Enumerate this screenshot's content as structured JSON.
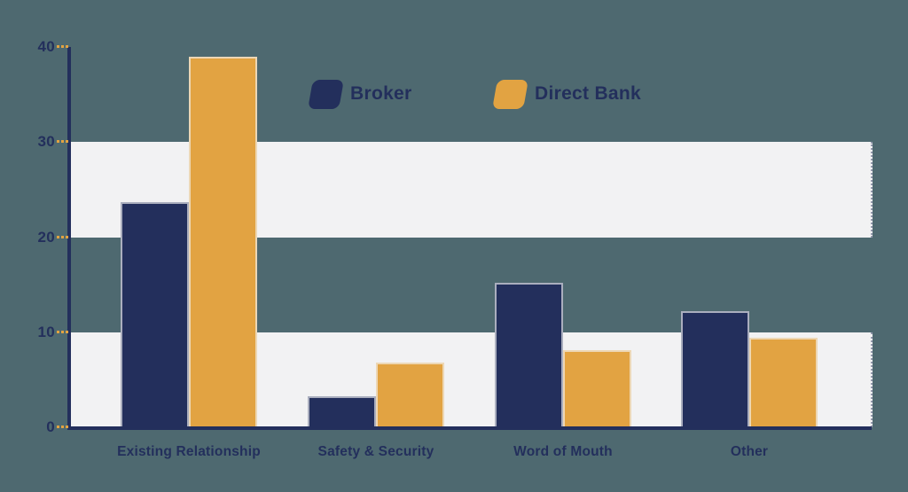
{
  "colors": {
    "background": "#4e6970",
    "band": "#f2f2f3",
    "broker": "#232f5c",
    "direct_bank": "#e2a342",
    "axis": "#232f5c",
    "tick": "#e2a342",
    "text": "#232f5c"
  },
  "legend": {
    "position": "top-center",
    "items": [
      "Broker",
      "Direct Bank"
    ]
  },
  "y_axis": {
    "tick_labels": [
      "0",
      "10",
      "20",
      "30",
      "40"
    ]
  },
  "chart_data": {
    "type": "bar",
    "title": "",
    "xlabel": "",
    "ylabel": "",
    "categories": [
      "Existing Relationship",
      "Safety & Security",
      "Word of Mouth",
      "Other"
    ],
    "series": [
      {
        "name": "Broker",
        "color": "#232f5c",
        "values": [
          23.7,
          3.3,
          15.2,
          12.2
        ]
      },
      {
        "name": "Direct Bank",
        "color": "#e2a342",
        "values": [
          39.0,
          6.8,
          8.1,
          9.4
        ]
      }
    ],
    "ylim": [
      0,
      40
    ],
    "y_ticks": [
      0,
      10,
      20,
      30,
      40
    ],
    "grid_bands": [
      [
        0,
        10
      ],
      [
        20,
        30
      ]
    ],
    "grid": "alternating-horizontal-bands",
    "legend_position": "top-center"
  }
}
